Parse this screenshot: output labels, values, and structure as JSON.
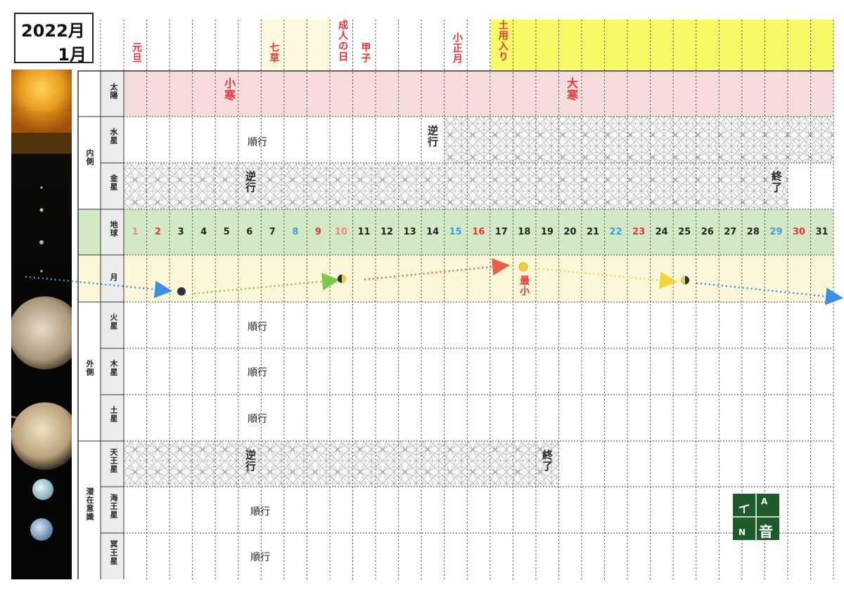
{
  "title": {
    "year": "2022月",
    "month": "1月"
  },
  "header_events": [
    {
      "col": 1,
      "text": "元旦",
      "color": "#e33"
    },
    {
      "col": 7,
      "text": "七草",
      "color": "#e33"
    },
    {
      "col": 10,
      "text": "成人の日",
      "color": "#e33"
    },
    {
      "col": 11,
      "text": "甲子",
      "color": "#e33"
    },
    {
      "col": 15,
      "text": "小正月",
      "color": "#e33"
    },
    {
      "col": 17,
      "text": "土用入り",
      "color": "#e33"
    }
  ],
  "groups": {
    "inner": "内側",
    "outer": "外側",
    "subconscious": "潜在意識"
  },
  "rows": {
    "sun": "太陽",
    "mercury": "水星",
    "venus": "金星",
    "earth": "地球",
    "moon": "月",
    "mars": "火星",
    "jupiter": "木星",
    "saturn": "土星",
    "uranus": "天王星",
    "neptune": "海王星",
    "pluto": "冥王星"
  },
  "sun_terms": {
    "shokan": "小寒",
    "daikan": "大寒"
  },
  "notes": {
    "mercury_direct": "順行",
    "mercury_retro": "逆行",
    "venus_retro": "逆行",
    "venus_end": "終了",
    "mars": "順行",
    "jupiter": "順行",
    "saturn": "順行",
    "uranus_retro": "逆行",
    "uranus_end": "終了",
    "neptune": "順行",
    "pluto": "順行",
    "moon_min": "最小"
  },
  "days": [
    {
      "d": "1",
      "c": "#e88"
    },
    {
      "d": "2",
      "c": "#e33"
    },
    {
      "d": "3",
      "c": "#222"
    },
    {
      "d": "4",
      "c": "#222"
    },
    {
      "d": "5",
      "c": "#222"
    },
    {
      "d": "6",
      "c": "#222"
    },
    {
      "d": "7",
      "c": "#222"
    },
    {
      "d": "8",
      "c": "#3a9ee0"
    },
    {
      "d": "9",
      "c": "#e33"
    },
    {
      "d": "10",
      "c": "#e88"
    },
    {
      "d": "11",
      "c": "#222"
    },
    {
      "d": "12",
      "c": "#222"
    },
    {
      "d": "13",
      "c": "#222"
    },
    {
      "d": "14",
      "c": "#222"
    },
    {
      "d": "15",
      "c": "#3a9ee0"
    },
    {
      "d": "16",
      "c": "#e33"
    },
    {
      "d": "17",
      "c": "#222"
    },
    {
      "d": "18",
      "c": "#222"
    },
    {
      "d": "19",
      "c": "#222"
    },
    {
      "d": "20",
      "c": "#222"
    },
    {
      "d": "21",
      "c": "#222"
    },
    {
      "d": "22",
      "c": "#3a9ee0"
    },
    {
      "d": "23",
      "c": "#e33"
    },
    {
      "d": "24",
      "c": "#222"
    },
    {
      "d": "25",
      "c": "#222"
    },
    {
      "d": "26",
      "c": "#222"
    },
    {
      "d": "27",
      "c": "#222"
    },
    {
      "d": "28",
      "c": "#222"
    },
    {
      "d": "29",
      "c": "#3a9ee0"
    },
    {
      "d": "30",
      "c": "#e33"
    },
    {
      "d": "31",
      "c": "#222"
    }
  ],
  "logo": {
    "a": "A",
    "n": "N",
    "on": "音"
  },
  "colors": {
    "sun_row": "#f7dcdc",
    "earth_row": "#d3e8c4",
    "moon_row": "#fbf7d8",
    "doyo": "#fafa66",
    "nanakusa": "#fdf9de"
  }
}
